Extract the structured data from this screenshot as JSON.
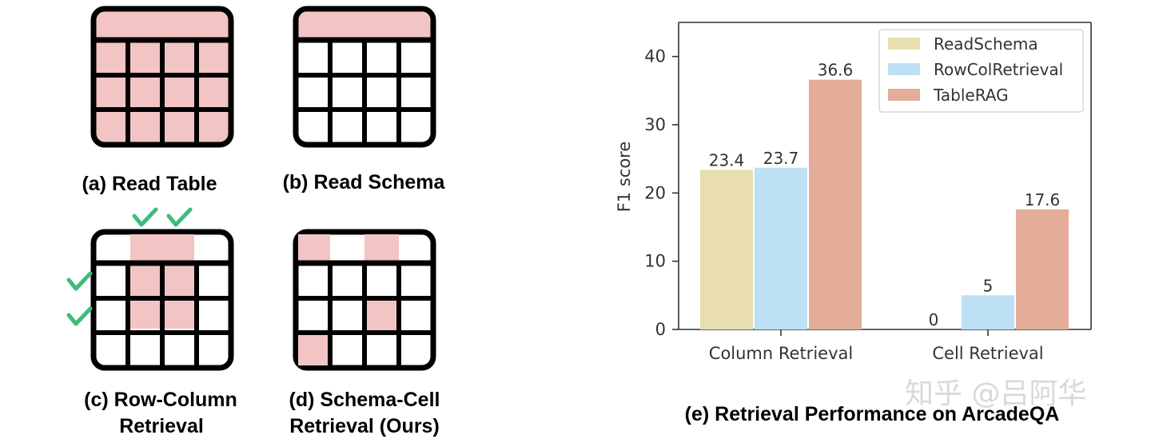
{
  "panels": {
    "a": "(a) Read Table",
    "b": "(b) Read Schema",
    "c": [
      "(c) Row-Column",
      "Retrieval"
    ],
    "d": [
      "(d) Schema-Cell",
      "Retrieval (Ours)"
    ]
  },
  "colors": {
    "highlight": "#f2c4c4",
    "grid_line": "#000000",
    "check": "#3dbd7d",
    "bar_read_schema": "#e8deb1",
    "bar_rowcol": "#bde0f5",
    "bar_tablerag": "#e3ad9a"
  },
  "chart_data": {
    "type": "bar",
    "title": "(e) Retrieval Performance on ArcadeQA",
    "categories": [
      "Column Retrieval",
      "Cell Retrieval"
    ],
    "series": [
      {
        "name": "ReadSchema",
        "values": [
          23.4,
          0
        ],
        "labels": [
          "23.4",
          "0"
        ]
      },
      {
        "name": "RowColRetrieval",
        "values": [
          23.7,
          5
        ],
        "labels": [
          "23.7",
          "5"
        ]
      },
      {
        "name": "TableRAG",
        "values": [
          36.6,
          17.6
        ],
        "labels": [
          "36.6",
          "17.6"
        ]
      }
    ],
    "xlabel": "",
    "ylabel": "F1 score",
    "ylim": [
      0,
      45
    ],
    "yticks": [
      "0",
      "10",
      "20",
      "30",
      "40"
    ],
    "legend_position": "top-right"
  },
  "watermark": "知乎 @吕阿华"
}
